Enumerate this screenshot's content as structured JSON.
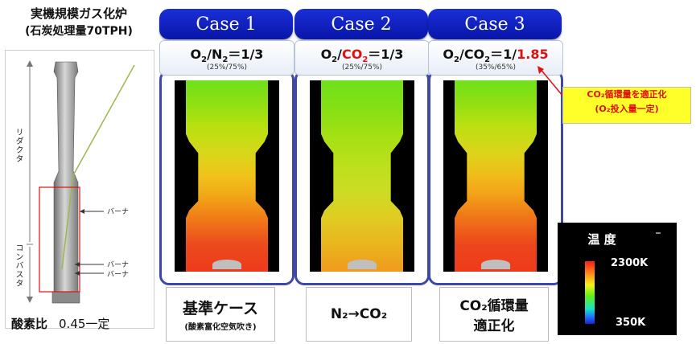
{
  "title": {
    "main": "実機規模ガス化炉",
    "sub": "(石炭処理量70TPH)"
  },
  "gasifier": {
    "section_reductor": "リダクタ",
    "section_combustor": "コンバスタ",
    "burner_labels": [
      "バーナ",
      "バーナ",
      "バーナ"
    ]
  },
  "oxygen_ratio": {
    "label": "酸素比",
    "value": "0.45一定"
  },
  "cases": [
    {
      "header": "Case 1",
      "ratio": {
        "a": "O",
        "a_sub": "2",
        "slash": "/",
        "b": "N",
        "b_sub": "2",
        "eq": "＝1/3",
        "highlight": ""
      },
      "pct": "(25%/75%)",
      "desc_main": "基準ケース",
      "desc_sub": "(酸素富化空気吹き)"
    },
    {
      "header": "Case 2",
      "ratio": {
        "a": "O",
        "a_sub": "2",
        "slash": "/",
        "b": "CO",
        "b_sub": "2",
        "eq": "＝1/3",
        "highlight": ""
      },
      "pct": "(25%/75%)",
      "desc_main": "N₂→CO₂",
      "desc_sub": ""
    },
    {
      "header": "Case 3",
      "ratio": {
        "a": "O",
        "a_sub": "2",
        "slash": "/",
        "b": "CO",
        "b_sub": "2",
        "eq": "＝1/",
        "highlight": "1.85"
      },
      "pct": "(35%/65%)",
      "desc_main": "CO₂循環量",
      "desc_sub": "適正化"
    }
  ],
  "callout": {
    "line1": "CO₂循環量を適正化",
    "line2": "(O₂投入量一定)"
  },
  "legend": {
    "title": "温 度",
    "max": "2300K",
    "min": "350K"
  },
  "colors": {
    "header_blue": "#0a1ab8",
    "highlight_red": "#e01010",
    "frame_blue": "#3d48a8",
    "callout_yellow": "#ffff2a"
  }
}
